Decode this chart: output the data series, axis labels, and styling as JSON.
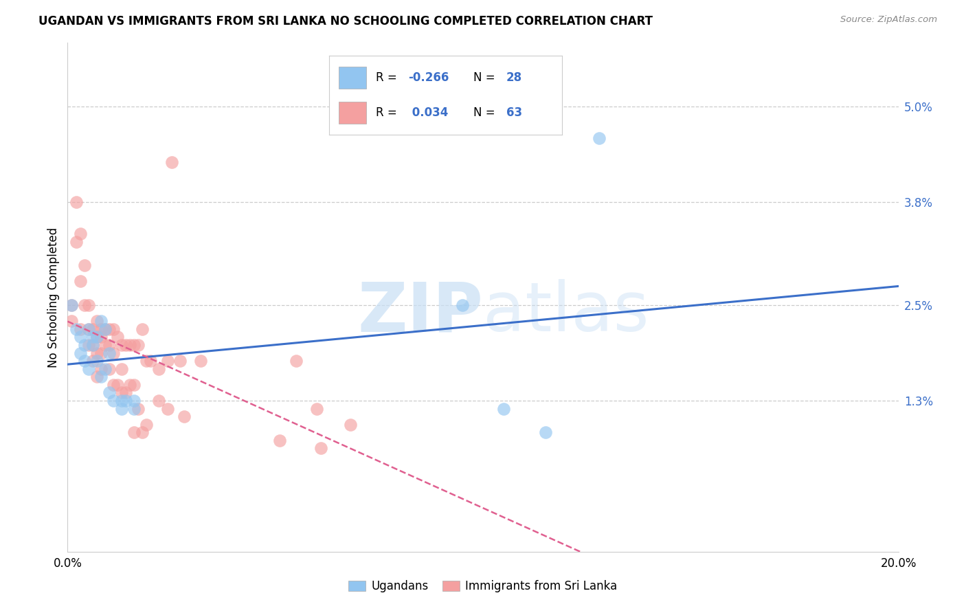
{
  "title": "UGANDAN VS IMMIGRANTS FROM SRI LANKA NO SCHOOLING COMPLETED CORRELATION CHART",
  "source": "Source: ZipAtlas.com",
  "ylabel": "No Schooling Completed",
  "ytick_values": [
    0.05,
    0.038,
    0.025,
    0.013
  ],
  "xlim": [
    0.0,
    0.2
  ],
  "ylim": [
    -0.006,
    0.058
  ],
  "legend_r_blue": "-0.266",
  "legend_n_blue": "28",
  "legend_r_pink": "0.034",
  "legend_n_pink": "63",
  "blue_color": "#92C5F0",
  "pink_color": "#F4A0A0",
  "blue_line_color": "#3B6FC9",
  "pink_line_color": "#E06090",
  "text_blue": "#3B6FC9",
  "watermark_color": "#C8DFF4",
  "ugandan_x": [
    0.001,
    0.002,
    0.003,
    0.003,
    0.004,
    0.004,
    0.005,
    0.005,
    0.006,
    0.006,
    0.007,
    0.007,
    0.008,
    0.008,
    0.009,
    0.009,
    0.01,
    0.01,
    0.011,
    0.013,
    0.013,
    0.014,
    0.016,
    0.016,
    0.095,
    0.105,
    0.115,
    0.128
  ],
  "ugandan_y": [
    0.025,
    0.022,
    0.021,
    0.019,
    0.02,
    0.018,
    0.022,
    0.017,
    0.021,
    0.02,
    0.021,
    0.018,
    0.023,
    0.016,
    0.022,
    0.017,
    0.019,
    0.014,
    0.013,
    0.013,
    0.012,
    0.013,
    0.013,
    0.012,
    0.025,
    0.012,
    0.009,
    0.046
  ],
  "srilanka_x": [
    0.001,
    0.001,
    0.002,
    0.002,
    0.003,
    0.003,
    0.003,
    0.004,
    0.004,
    0.005,
    0.005,
    0.005,
    0.006,
    0.006,
    0.006,
    0.007,
    0.007,
    0.007,
    0.007,
    0.008,
    0.008,
    0.008,
    0.008,
    0.009,
    0.009,
    0.01,
    0.01,
    0.01,
    0.011,
    0.011,
    0.011,
    0.012,
    0.012,
    0.013,
    0.013,
    0.013,
    0.014,
    0.014,
    0.015,
    0.015,
    0.016,
    0.016,
    0.016,
    0.017,
    0.017,
    0.018,
    0.018,
    0.019,
    0.019,
    0.02,
    0.022,
    0.022,
    0.024,
    0.024,
    0.025,
    0.027,
    0.028,
    0.032,
    0.051,
    0.055,
    0.06,
    0.061,
    0.068
  ],
  "srilanka_y": [
    0.025,
    0.023,
    0.038,
    0.033,
    0.034,
    0.028,
    0.022,
    0.03,
    0.025,
    0.025,
    0.022,
    0.02,
    0.022,
    0.02,
    0.018,
    0.023,
    0.021,
    0.019,
    0.016,
    0.022,
    0.021,
    0.019,
    0.017,
    0.022,
    0.02,
    0.022,
    0.02,
    0.017,
    0.022,
    0.019,
    0.015,
    0.021,
    0.015,
    0.02,
    0.017,
    0.014,
    0.02,
    0.014,
    0.02,
    0.015,
    0.02,
    0.015,
    0.009,
    0.02,
    0.012,
    0.022,
    0.009,
    0.018,
    0.01,
    0.018,
    0.017,
    0.013,
    0.018,
    0.012,
    0.043,
    0.018,
    0.011,
    0.018,
    0.008,
    0.018,
    0.012,
    0.007,
    0.01
  ]
}
